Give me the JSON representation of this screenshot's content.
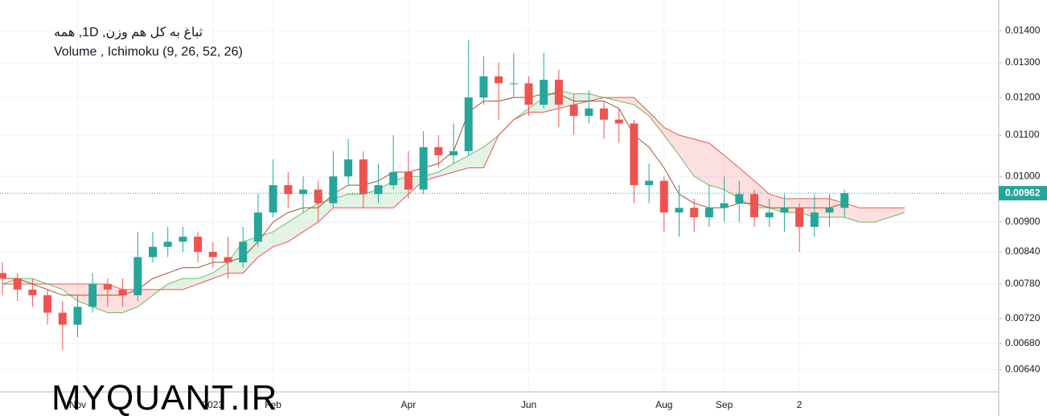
{
  "chart_data": {
    "type": "candlestick",
    "title": "ثباغ به کل هم وزن, 1D, همه",
    "subtitle": "Volume , Ichimoku (9, 26, 52, 26)",
    "watermark": "MYQUANT.IR",
    "up_color": "#26a69a",
    "down_color": "#ef5350",
    "log_scale": true,
    "grid": true,
    "ylim": [
      0.00608,
      0.01503
    ],
    "yticks": [
      {
        "value": 0.0064,
        "label": "0.00640"
      },
      {
        "value": 0.0068,
        "label": "0.00680"
      },
      {
        "value": 0.0072,
        "label": "0.00720"
      },
      {
        "value": 0.0078,
        "label": "0.00780"
      },
      {
        "value": 0.0084,
        "label": "0.00840"
      },
      {
        "value": 0.009,
        "label": "0.00900"
      },
      {
        "value": 0.01,
        "label": "0.01000"
      },
      {
        "value": 0.011,
        "label": "0.01100"
      },
      {
        "value": 0.012,
        "label": "0.01200"
      },
      {
        "value": 0.013,
        "label": "0.01300"
      },
      {
        "value": 0.014,
        "label": "0.01400"
      }
    ],
    "last_price": {
      "value": 0.00962,
      "label": "0.00962"
    },
    "categories": [
      null,
      null,
      null,
      null,
      null,
      "Nov",
      null,
      null,
      null,
      null,
      null,
      null,
      null,
      null,
      "2023",
      null,
      null,
      null,
      "Feb",
      null,
      null,
      null,
      null,
      null,
      null,
      null,
      null,
      "Apr",
      null,
      null,
      null,
      null,
      null,
      null,
      null,
      "Jun",
      null,
      null,
      null,
      null,
      null,
      null,
      null,
      null,
      "Aug",
      null,
      null,
      null,
      "Sep",
      null,
      null,
      null,
      null,
      "2",
      null,
      null,
      null,
      null,
      null,
      null,
      null
    ],
    "open": [
      0.008,
      0.0079,
      0.0077,
      0.0076,
      0.0073,
      0.0071,
      0.0074,
      0.0078,
      0.0077,
      0.0076,
      0.0083,
      0.0085,
      0.0086,
      0.0087,
      0.0084,
      0.0083,
      0.0082,
      0.0086,
      0.0092,
      0.0098,
      0.0096,
      0.0097,
      0.0094,
      0.01,
      0.0104,
      0.0096,
      0.0098,
      0.0101,
      0.0097,
      0.0107,
      0.0105,
      0.0106,
      0.012,
      0.0126,
      0.0124,
      0.0124,
      0.0118,
      0.0125,
      0.0118,
      0.0115,
      0.0117,
      0.0114,
      0.0113,
      0.0098,
      0.0099,
      0.0092,
      0.0093,
      0.0091,
      0.0093,
      0.0094,
      0.0096,
      0.0091,
      0.0092,
      0.0093,
      0.0089,
      0.0092,
      0.0093,
      null,
      null,
      null,
      null
    ],
    "high": [
      0.0082,
      0.008,
      0.0079,
      0.0077,
      0.0075,
      0.0076,
      0.008,
      0.0079,
      0.0079,
      0.0088,
      0.0088,
      0.0089,
      0.0089,
      0.0088,
      0.0086,
      0.0087,
      0.0089,
      0.0096,
      0.0104,
      0.0101,
      0.01,
      0.0099,
      0.0106,
      0.0109,
      0.0106,
      0.0103,
      0.011,
      0.0106,
      0.0111,
      0.011,
      0.0113,
      0.0137,
      0.0132,
      0.013,
      0.0133,
      0.0126,
      0.0133,
      0.0128,
      0.0121,
      0.0122,
      0.0119,
      0.0117,
      0.0114,
      0.0103,
      0.01,
      0.0098,
      0.0095,
      0.0098,
      0.01,
      0.0099,
      0.0097,
      0.0095,
      0.0096,
      0.0094,
      0.0096,
      0.0096,
      0.0097,
      null,
      null,
      null,
      null
    ],
    "low": [
      0.0076,
      0.0075,
      0.0074,
      0.0071,
      0.0067,
      0.0069,
      0.0073,
      0.0074,
      0.0074,
      0.0075,
      0.0082,
      0.0083,
      0.0084,
      0.0082,
      0.0081,
      0.0079,
      0.0081,
      0.0085,
      0.0091,
      0.0093,
      0.0092,
      0.009,
      0.0093,
      0.0098,
      0.0093,
      0.0094,
      0.0097,
      0.0095,
      0.0096,
      0.0102,
      0.0103,
      0.0105,
      0.0118,
      0.0114,
      0.012,
      0.0115,
      0.0117,
      0.0112,
      0.011,
      0.0113,
      0.0109,
      0.0108,
      0.0094,
      0.0094,
      0.0088,
      0.0087,
      0.0088,
      0.0089,
      0.009,
      0.009,
      0.0089,
      0.0089,
      0.0088,
      0.0084,
      0.0087,
      0.0089,
      0.0091,
      null,
      null,
      null,
      null
    ],
    "close": [
      0.0079,
      0.0077,
      0.0076,
      0.0073,
      0.0071,
      0.0074,
      0.0078,
      0.0077,
      0.0076,
      0.0083,
      0.0085,
      0.0086,
      0.0087,
      0.0084,
      0.0083,
      0.0082,
      0.0086,
      0.0092,
      0.0098,
      0.0096,
      0.0097,
      0.0094,
      0.01,
      0.0104,
      0.0096,
      0.0098,
      0.0101,
      0.0097,
      0.0107,
      0.0105,
      0.0106,
      0.012,
      0.0126,
      0.0124,
      0.0124,
      0.0118,
      0.0125,
      0.0118,
      0.0115,
      0.0117,
      0.0114,
      0.0113,
      0.0098,
      0.0099,
      0.0092,
      0.0093,
      0.0091,
      0.0093,
      0.0094,
      0.0096,
      0.0091,
      0.0092,
      0.0093,
      0.0089,
      0.0092,
      0.0093,
      0.00962,
      null,
      null,
      null,
      null
    ],
    "span_a": [
      0.0078,
      0.0079,
      0.0079,
      0.0078,
      0.0077,
      0.0075,
      0.0074,
      0.0073,
      0.0073,
      0.0074,
      0.0076,
      0.0078,
      0.0079,
      0.0079,
      0.008,
      0.0082,
      0.0086,
      0.0087,
      0.0088,
      0.009,
      0.0092,
      0.0094,
      0.0095,
      0.0096,
      0.0096,
      0.0097,
      0.0099,
      0.01,
      0.01,
      0.0101,
      0.0103,
      0.0105,
      0.0107,
      0.011,
      0.0114,
      0.0117,
      0.012,
      0.0122,
      0.0121,
      0.0121,
      0.012,
      0.0119,
      0.0118,
      0.0115,
      0.011,
      0.0105,
      0.01,
      0.0098,
      0.0097,
      0.0095,
      0.0093,
      0.0093,
      0.0092,
      0.0092,
      0.0091,
      0.0091,
      0.0091,
      0.009,
      0.009,
      0.0091,
      0.0092
    ],
    "span_b": [
      0.0078,
      0.0078,
      0.0078,
      0.0078,
      0.0078,
      0.0078,
      0.0078,
      0.0078,
      0.0077,
      0.0077,
      0.0077,
      0.0077,
      0.0077,
      0.0078,
      0.0079,
      0.008,
      0.008,
      0.0083,
      0.0085,
      0.0086,
      0.0088,
      0.009,
      0.0093,
      0.0093,
      0.0093,
      0.0093,
      0.0093,
      0.0096,
      0.0099,
      0.01,
      0.0101,
      0.0102,
      0.0102,
      0.011,
      0.0114,
      0.0116,
      0.0116,
      0.0117,
      0.0118,
      0.0119,
      0.012,
      0.012,
      0.012,
      0.0116,
      0.0112,
      0.011,
      0.0109,
      0.0108,
      0.0105,
      0.0102,
      0.0099,
      0.0096,
      0.0095,
      0.0095,
      0.0095,
      0.0095,
      0.0094,
      0.0093,
      0.0093,
      0.0093,
      0.0093
    ],
    "base_line": [
      0.0079,
      0.0079,
      0.0078,
      0.0077,
      0.0076,
      0.0076,
      0.0076,
      0.0076,
      0.0076,
      0.0077,
      0.0079,
      0.008,
      0.0081,
      0.0081,
      0.0082,
      0.0082,
      0.0083,
      0.0086,
      0.009,
      0.0092,
      0.0093,
      0.0093,
      0.0096,
      0.0098,
      0.0098,
      0.0099,
      0.0101,
      0.0101,
      0.0102,
      0.0103,
      0.0106,
      0.0116,
      0.0119,
      0.0119,
      0.012,
      0.012,
      0.0121,
      0.0121,
      0.0119,
      0.0119,
      0.0119,
      0.0117,
      0.011,
      0.0107,
      0.0102,
      0.0096,
      0.0094,
      0.0093,
      0.0093,
      0.0094,
      0.0094,
      0.0093,
      0.0093,
      0.0093,
      0.0093,
      0.0093,
      0.0094,
      null,
      null,
      null,
      null
    ]
  }
}
